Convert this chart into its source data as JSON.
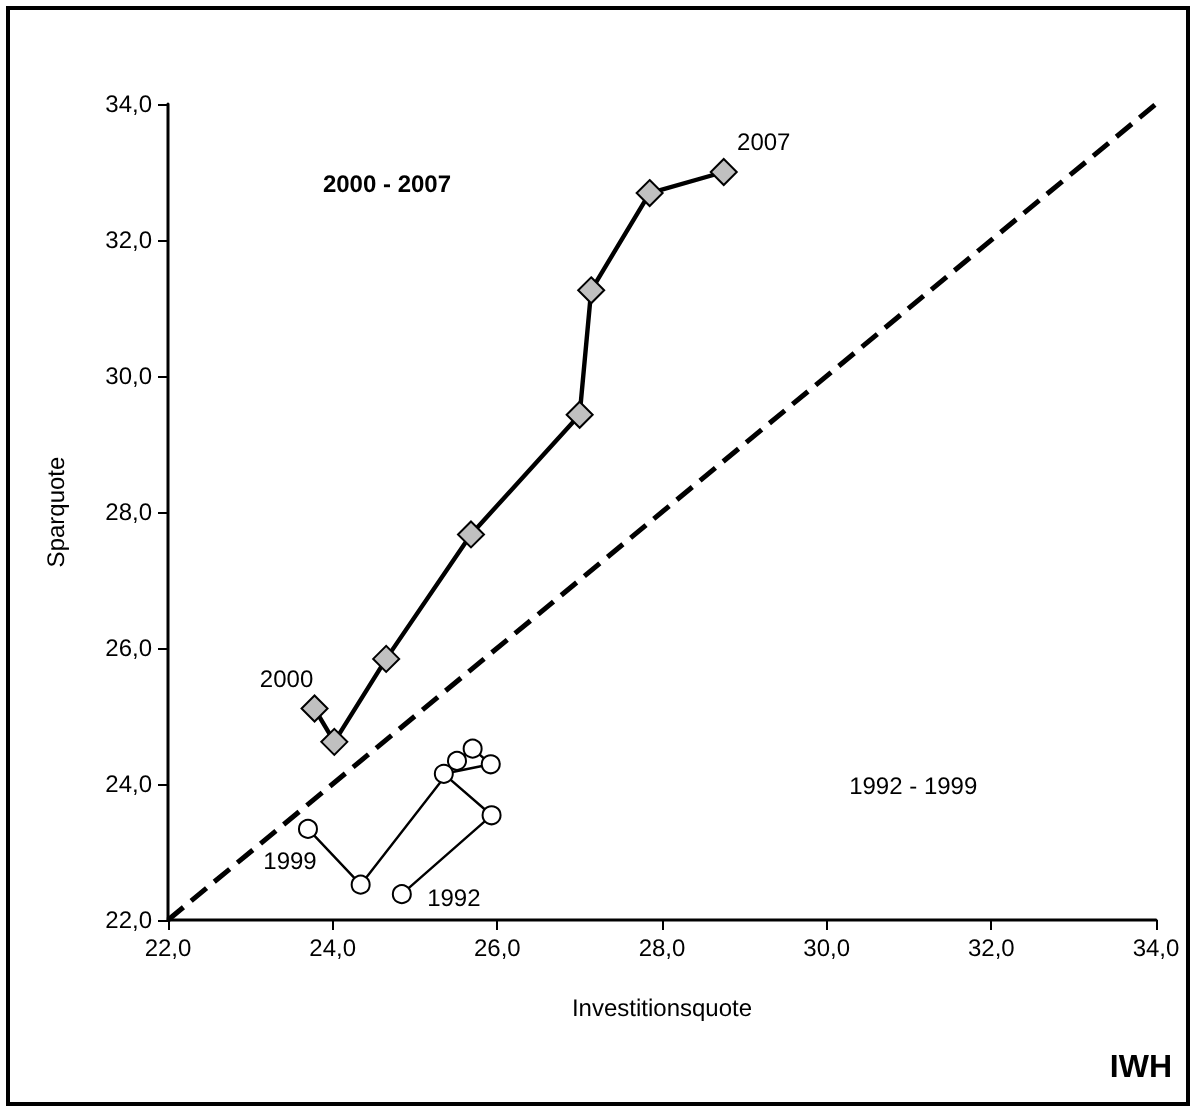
{
  "chart_data": {
    "type": "line",
    "xlabel": "Investitionsquote",
    "ylabel": "Sparquote",
    "xlim": [
      22,
      34
    ],
    "ylim": [
      22,
      34
    ],
    "xticks": [
      {
        "value": 22,
        "label": "22,0"
      },
      {
        "value": 24,
        "label": "24,0"
      },
      {
        "value": 26,
        "label": "26,0"
      },
      {
        "value": 28,
        "label": "28,0"
      },
      {
        "value": 30,
        "label": "30,0"
      },
      {
        "value": 32,
        "label": "32,0"
      },
      {
        "value": 34,
        "label": "34,0"
      }
    ],
    "yticks": [
      {
        "value": 22,
        "label": "22,0"
      },
      {
        "value": 24,
        "label": "24,0"
      },
      {
        "value": 26,
        "label": "26,0"
      },
      {
        "value": 28,
        "label": "28,0"
      },
      {
        "value": 30,
        "label": "30,0"
      },
      {
        "value": 32,
        "label": "32,0"
      },
      {
        "value": 34,
        "label": "34,0"
      }
    ],
    "grid": false,
    "series": [
      {
        "color": "#000000",
        "marker": "diamond",
        "line_style": "solid",
        "x": [
          23.78,
          24.02,
          24.65,
          25.68,
          27.0,
          27.14,
          27.85,
          28.75
        ],
        "values": [
          25.11,
          24.62,
          25.84,
          27.67,
          29.43,
          31.26,
          32.69,
          33.0
        ]
      },
      {
        "color": "#000000",
        "marker": "circle",
        "line_style": "solid",
        "x": [
          24.84,
          25.93,
          25.35,
          25.92,
          25.7,
          25.51,
          24.34,
          23.7
        ],
        "values": [
          22.38,
          23.54,
          24.15,
          24.29,
          24.52,
          24.34,
          22.52,
          23.34
        ]
      },
      {
        "color": "#000000",
        "marker": "none",
        "line_style": "dashed",
        "x": [
          22,
          34
        ],
        "values": [
          22,
          34
        ]
      }
    ],
    "annotations": [
      "2000 - 2007",
      "1992 - 1999",
      {
        "text": "2007",
        "x": 28.75,
        "y": 33.0
      },
      {
        "text": "2000",
        "x": 23.78,
        "y": 25.11
      },
      {
        "text": "1999",
        "x": 23.7,
        "y": 23.34
      },
      {
        "text": "1992",
        "x": 24.84,
        "y": 22.38
      },
      "IWH"
    ]
  }
}
